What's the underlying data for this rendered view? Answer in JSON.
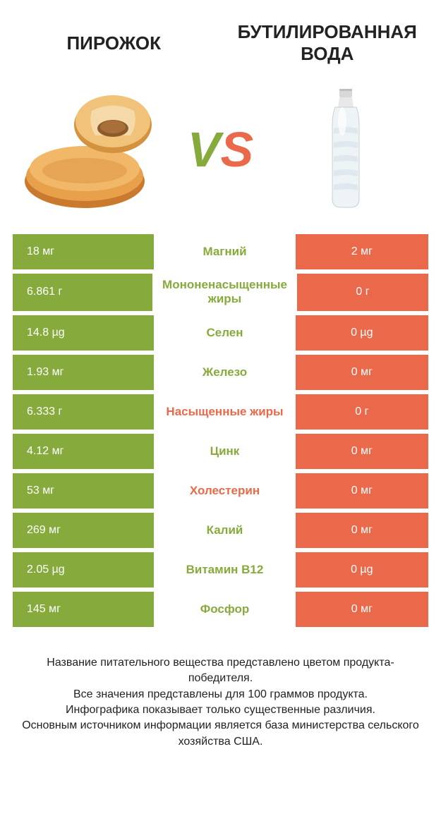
{
  "titles": {
    "left": "ПИРОЖОК",
    "right": "БУТИЛИРОВАННАЯ ВОДА"
  },
  "vs": {
    "v": "V",
    "s": "S"
  },
  "colors": {
    "left_bg": "#86ab3c",
    "right_bg": "#e9694a",
    "left_text": "#ffffff",
    "right_text": "#ffffff",
    "nutrient_green": "#86ab3c",
    "nutrient_red": "#e9694a",
    "background": "#ffffff",
    "row_gap": 6,
    "title_fontsize": 26,
    "vs_fontsize": 70,
    "cell_fontsize": 16,
    "nutrient_fontsize": 17
  },
  "rows": [
    {
      "left": "18 мг",
      "nutrient": "Магний",
      "right": "2 мг",
      "winner": "green"
    },
    {
      "left": "6.861 г",
      "nutrient": "Мононенасыщенные жиры",
      "right": "0 г",
      "winner": "green"
    },
    {
      "left": "14.8 µg",
      "nutrient": "Селен",
      "right": "0 µg",
      "winner": "green"
    },
    {
      "left": "1.93 мг",
      "nutrient": "Железо",
      "right": "0 мг",
      "winner": "green"
    },
    {
      "left": "6.333 г",
      "nutrient": "Насыщенные жиры",
      "right": "0 г",
      "winner": "red"
    },
    {
      "left": "4.12 мг",
      "nutrient": "Цинк",
      "right": "0 мг",
      "winner": "green"
    },
    {
      "left": "53 мг",
      "nutrient": "Холестерин",
      "right": "0 мг",
      "winner": "red"
    },
    {
      "left": "269 мг",
      "nutrient": "Калий",
      "right": "0 мг",
      "winner": "green"
    },
    {
      "left": "2.05 µg",
      "nutrient": "Витамин B12",
      "right": "0 µg",
      "winner": "green"
    },
    {
      "left": "145 мг",
      "nutrient": "Фосфор",
      "right": "0 мг",
      "winner": "green"
    }
  ],
  "footer": {
    "l1": "Название питательного вещества представлено цветом продукта-победителя.",
    "l2": "Все значения представлены для 100 граммов продукта.",
    "l3": "Инфографика показывает только существенные различия.",
    "l4": "Основным источником информации является база министерства сельского хозяйства США."
  }
}
